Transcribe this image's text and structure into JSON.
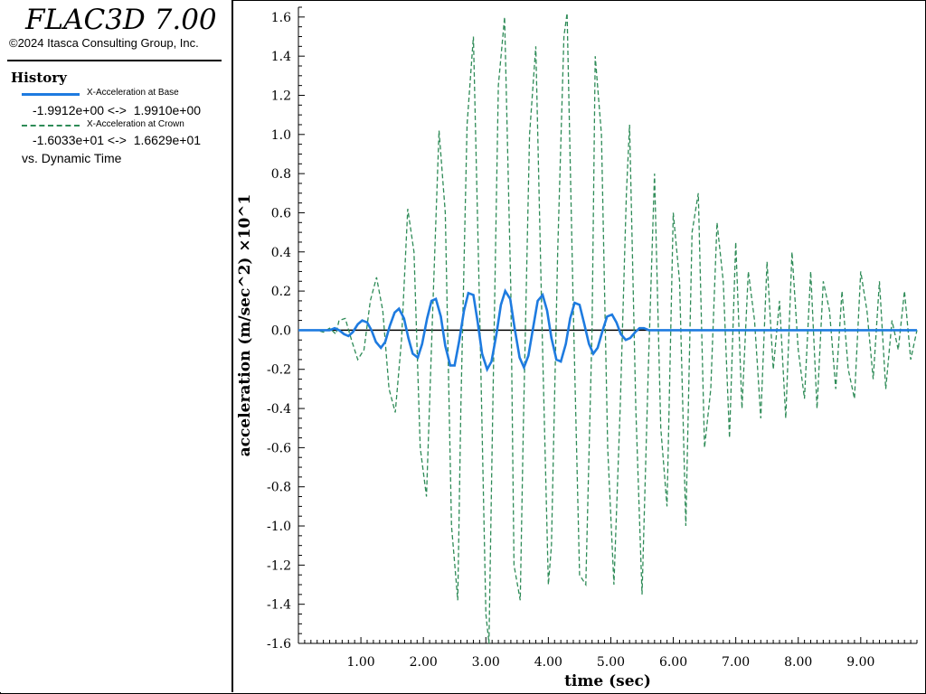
{
  "app": {
    "title": "FLAC3D 7.00",
    "copyright": "©2024 Itasca Consulting Group, Inc."
  },
  "history_panel": {
    "heading": "History",
    "series": [
      {
        "label": "X-Acceleration at Base",
        "range": "-1.9912e+00 <->  1.9910e+00",
        "color": "#1e7be0",
        "style": "solid"
      },
      {
        "label": "X-Acceleration at Crown",
        "range": "-1.6033e+01 <->  1.6629e+01",
        "color": "#2e8b57",
        "style": "dashed"
      }
    ],
    "versus": "vs. Dynamic Time"
  },
  "chart_data": {
    "type": "line",
    "xlabel": "time (sec)",
    "ylabel": "acceleration (m/sec^2) ×10^1",
    "xlim": [
      0,
      9.9
    ],
    "ylim": [
      -1.6,
      1.65
    ],
    "x_ticks": [
      1,
      2,
      3,
      4,
      5,
      6,
      7,
      8,
      9
    ],
    "x_tick_labels": [
      "1.00",
      "2.00",
      "3.00",
      "4.00",
      "5.00",
      "6.00",
      "7.00",
      "8.00",
      "9.00"
    ],
    "y_ticks": [
      1.6,
      1.4,
      1.2,
      1.0,
      0.8,
      0.6,
      0.4,
      0.2,
      0.0,
      -0.2,
      -0.4,
      -0.6,
      -0.8,
      -1.0,
      -1.2,
      -1.4,
      -1.6
    ],
    "y_tick_labels": [
      "1.6",
      "1.4",
      "1.2",
      "1.0",
      "0.8",
      "0.6",
      "0.4",
      "0.2",
      "0.0",
      "-0.2",
      "-0.4",
      "-0.6",
      "-0.8",
      "-1.0",
      "-1.2",
      "-1.4",
      "-1.6"
    ],
    "zero_line": true,
    "series": [
      {
        "name": "X-Acceleration at Base",
        "color": "#1e7be0",
        "style": "solid",
        "x": [
          0,
          0.5,
          0.58,
          0.65,
          0.73,
          0.8,
          0.87,
          0.95,
          1.02,
          1.1,
          1.17,
          1.24,
          1.32,
          1.39,
          1.46,
          1.54,
          1.61,
          1.69,
          1.76,
          1.83,
          1.91,
          1.98,
          2.06,
          2.13,
          2.2,
          2.28,
          2.35,
          2.43,
          2.5,
          2.57,
          2.65,
          2.72,
          2.8,
          2.87,
          2.94,
          3.02,
          3.09,
          3.17,
          3.24,
          3.31,
          3.39,
          3.46,
          3.54,
          3.61,
          3.68,
          3.76,
          3.83,
          3.91,
          3.98,
          4.05,
          4.13,
          4.2,
          4.28,
          4.35,
          4.42,
          4.5,
          4.57,
          4.65,
          4.72,
          4.79,
          4.87,
          4.94,
          5.02,
          5.09,
          5.16,
          5.24,
          5.31,
          5.39,
          5.46,
          5.53,
          5.61,
          5.68,
          6.5,
          9.9
        ],
        "y": [
          0,
          0,
          0.01,
          0.0,
          -0.02,
          -0.03,
          -0.01,
          0.03,
          0.05,
          0.04,
          0.0,
          -0.06,
          -0.09,
          -0.06,
          0.02,
          0.09,
          0.11,
          0.06,
          -0.04,
          -0.12,
          -0.14,
          -0.07,
          0.06,
          0.15,
          0.16,
          0.07,
          -0.08,
          -0.18,
          -0.18,
          -0.06,
          0.1,
          0.19,
          0.18,
          0.04,
          -0.12,
          -0.2,
          -0.16,
          -0.02,
          0.13,
          0.2,
          0.16,
          0.01,
          -0.14,
          -0.19,
          -0.13,
          0.02,
          0.15,
          0.18,
          0.1,
          -0.04,
          -0.15,
          -0.16,
          -0.07,
          0.06,
          0.14,
          0.13,
          0.04,
          -0.07,
          -0.12,
          -0.09,
          0.0,
          0.07,
          0.08,
          0.04,
          -0.02,
          -0.05,
          -0.04,
          -0.01,
          0.01,
          0.01,
          0.0,
          0.0,
          0.0,
          0.0
        ]
      },
      {
        "name": "X-Acceleration at Crown",
        "color": "#2e8b57",
        "style": "dashed",
        "x": [
          0,
          0.3,
          0.4,
          0.5,
          0.6,
          0.65,
          0.75,
          0.85,
          0.95,
          1.05,
          1.15,
          1.25,
          1.35,
          1.45,
          1.55,
          1.65,
          1.75,
          1.85,
          1.95,
          2.05,
          2.15,
          2.25,
          2.35,
          2.45,
          2.55,
          2.6,
          2.7,
          2.8,
          2.9,
          3.0,
          3.05,
          3.1,
          3.2,
          3.3,
          3.4,
          3.45,
          3.55,
          3.6,
          3.7,
          3.8,
          3.9,
          4.0,
          4.05,
          4.15,
          4.25,
          4.3,
          4.4,
          4.5,
          4.6,
          4.7,
          4.75,
          4.85,
          4.95,
          5.05,
          5.15,
          5.25,
          5.3,
          5.4,
          5.5,
          5.6,
          5.7,
          5.8,
          5.9,
          6.0,
          6.1,
          6.2,
          6.3,
          6.4,
          6.5,
          6.6,
          6.7,
          6.8,
          6.9,
          7.0,
          7.1,
          7.2,
          7.3,
          7.4,
          7.5,
          7.6,
          7.7,
          7.8,
          7.9,
          8.0,
          8.1,
          8.2,
          8.3,
          8.4,
          8.5,
          8.6,
          8.7,
          8.8,
          8.9,
          9.0,
          9.1,
          9.2,
          9.3,
          9.4,
          9.5,
          9.6,
          9.7,
          9.8,
          9.9
        ],
        "y": [
          0,
          0.0,
          -0.01,
          0.01,
          -0.02,
          0.05,
          0.06,
          -0.05,
          -0.15,
          -0.1,
          0.15,
          0.27,
          0.1,
          -0.3,
          -0.42,
          -0.05,
          0.62,
          0.4,
          -0.6,
          -0.85,
          0.1,
          1.02,
          0.6,
          -1.0,
          -1.38,
          -0.4,
          1.05,
          1.5,
          0.1,
          -1.45,
          -1.6,
          -0.6,
          1.25,
          1.6,
          0.2,
          -1.2,
          -1.38,
          -0.5,
          1.0,
          1.45,
          0.0,
          -1.3,
          -1.1,
          0.4,
          1.5,
          1.62,
          0.1,
          -1.25,
          -1.3,
          0.0,
          1.4,
          1.0,
          -0.6,
          -1.3,
          -0.4,
          0.7,
          1.05,
          -0.4,
          -1.35,
          -0.2,
          0.8,
          -0.5,
          -0.9,
          0.6,
          0.25,
          -1.0,
          0.5,
          0.7,
          -0.6,
          -0.3,
          0.55,
          0.25,
          -0.55,
          0.45,
          -0.4,
          0.3,
          0.05,
          -0.45,
          0.35,
          -0.2,
          0.15,
          -0.45,
          0.4,
          -0.1,
          -0.35,
          0.3,
          -0.4,
          0.25,
          0.1,
          -0.3,
          0.2,
          -0.2,
          -0.35,
          0.3,
          0.1,
          -0.25,
          0.25,
          -0.3,
          0.05,
          -0.1,
          0.2,
          -0.15,
          0.0
        ]
      }
    ]
  }
}
